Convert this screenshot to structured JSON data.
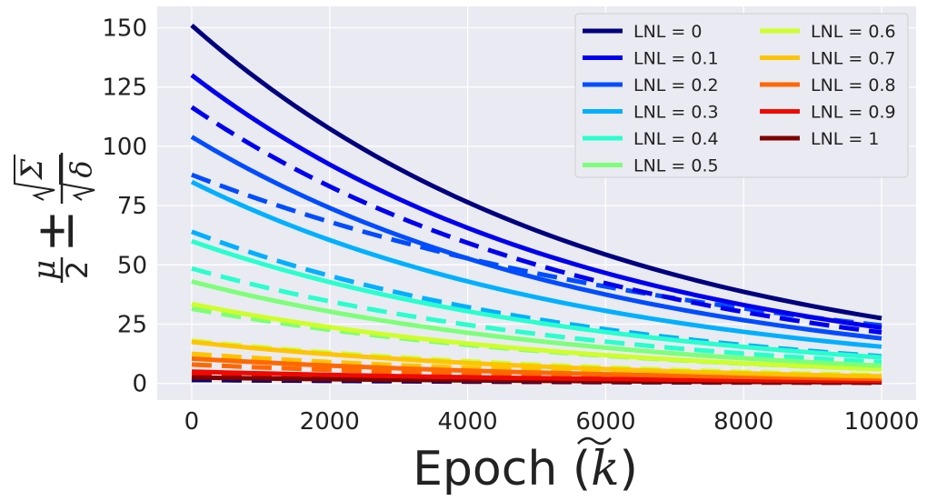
{
  "chart_data": {
    "type": "line",
    "xlabel_text": "Epoch (",
    "xlabel_var": "k",
    "xlabel_close": ")",
    "x_ticks": [
      0,
      2000,
      4000,
      6000,
      8000,
      10000
    ],
    "y_ticks": [
      0,
      25,
      50,
      75,
      100,
      125,
      150
    ],
    "xlim": [
      -500,
      10500
    ],
    "ylim": [
      -7,
      159
    ],
    "grid": true,
    "legend_position": "top-right",
    "legend_columns": 2,
    "x": [
      0,
      10000
    ],
    "series": [
      {
        "name": "LNL = 0",
        "color": "#00007f",
        "solid": [
          151,
          27.5
        ],
        "dashed": [
          1.5,
          0.5
        ]
      },
      {
        "name": "LNL = 0.1",
        "color": "#0000f1",
        "solid": [
          130,
          23.5
        ],
        "dashed": [
          116.5,
          21.5
        ]
      },
      {
        "name": "LNL = 0.2",
        "color": "#004cff",
        "solid": [
          104,
          19
        ],
        "dashed": [
          88,
          24.5
        ]
      },
      {
        "name": "LNL = 0.3",
        "color": "#00b0ff",
        "solid": [
          85,
          15.5
        ],
        "dashed": [
          64,
          11.5
        ]
      },
      {
        "name": "LNL = 0.4",
        "color": "#29ffce",
        "solid": [
          60,
          11
        ],
        "dashed": [
          48.5,
          9
        ]
      },
      {
        "name": "LNL = 0.5",
        "color": "#7dff7a",
        "solid": [
          43,
          7.5
        ],
        "dashed": [
          31.5,
          6
        ]
      },
      {
        "name": "LNL = 0.6",
        "color": "#ceff29",
        "solid": [
          33.5,
          6
        ],
        "dashed": [
          18,
          3.5
        ]
      },
      {
        "name": "LNL = 0.7",
        "color": "#ffc400",
        "solid": [
          17.5,
          3
        ],
        "dashed": [
          12.5,
          2.5
        ]
      },
      {
        "name": "LNL = 0.8",
        "color": "#ff6800",
        "solid": [
          10.5,
          2
        ],
        "dashed": [
          8,
          1.5
        ]
      },
      {
        "name": "LNL = 0.9",
        "color": "#f10800",
        "solid": [
          5,
          1
        ],
        "dashed": [
          3.5,
          0.8
        ]
      },
      {
        "name": "LNL = 1",
        "color": "#7f0000",
        "solid": [
          2.5,
          0.5
        ],
        "dashed": [
          1.5,
          0.3
        ]
      }
    ]
  }
}
